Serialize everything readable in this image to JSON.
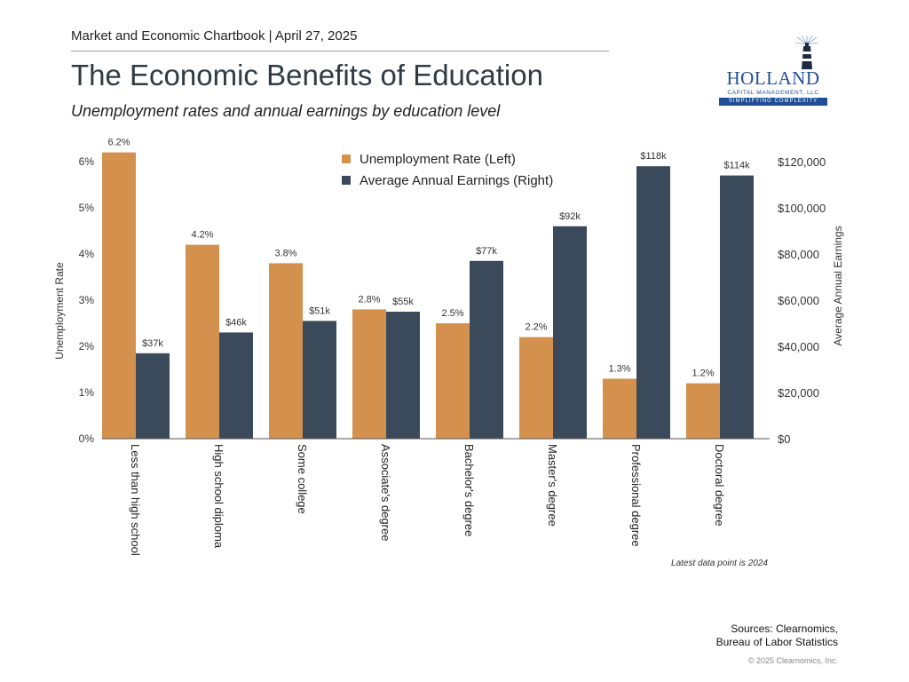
{
  "header": {
    "chartbook": "Market and Economic Chartbook | April 27, 2025",
    "title": "The Economic Benefits of Education",
    "subtitle": "Unemployment rates and annual earnings by education level"
  },
  "logo": {
    "name": "HOLLAND",
    "sub": "CAPITAL MANAGEMENT, LLC",
    "tagline": "SIMPLIFYING COMPLEXITY"
  },
  "chart_data": {
    "type": "bar",
    "categories": [
      "Less than high school",
      "High school diploma",
      "Some college",
      "Associate's degree",
      "Bachelor's degree",
      "Master's degree",
      "Professional degree",
      "Doctoral degree"
    ],
    "series": [
      {
        "name": "Unemployment Rate (Left)",
        "axis": "left",
        "color": "#d4914d",
        "values": [
          6.2,
          4.2,
          3.8,
          2.8,
          2.5,
          2.2,
          1.3,
          1.2
        ],
        "labels": [
          "6.2%",
          "4.2%",
          "3.8%",
          "2.8%",
          "2.5%",
          "2.2%",
          "1.3%",
          "1.2%"
        ]
      },
      {
        "name": "Average Annual Earnings (Right)",
        "axis": "right",
        "color": "#3b4a5a",
        "values": [
          37000,
          46000,
          51000,
          55000,
          77000,
          92000,
          118000,
          114000
        ],
        "labels": [
          "$37k",
          "$46k",
          "$51k",
          "$55k",
          "$77k",
          "$92k",
          "$118k",
          "$114k"
        ]
      }
    ],
    "left_axis": {
      "title": "Unemployment Rate",
      "min": 0,
      "max": 6,
      "ticks": [
        "0%",
        "1%",
        "2%",
        "3%",
        "4%",
        "5%",
        "6%"
      ]
    },
    "right_axis": {
      "title": "Average Annual Earnings",
      "min": 0,
      "max": 120000,
      "ticks": [
        "$0",
        "$20,000",
        "$40,000",
        "$60,000",
        "$80,000",
        "$100,000",
        "$120,000"
      ]
    },
    "legend_position": "top-center",
    "note": "Latest data point is 2024"
  },
  "footer": {
    "sources_line1": "Sources: Clearnomics,",
    "sources_line2": "Bureau of Labor Statistics",
    "copyright": "© 2025 Clearnomics, Inc."
  }
}
